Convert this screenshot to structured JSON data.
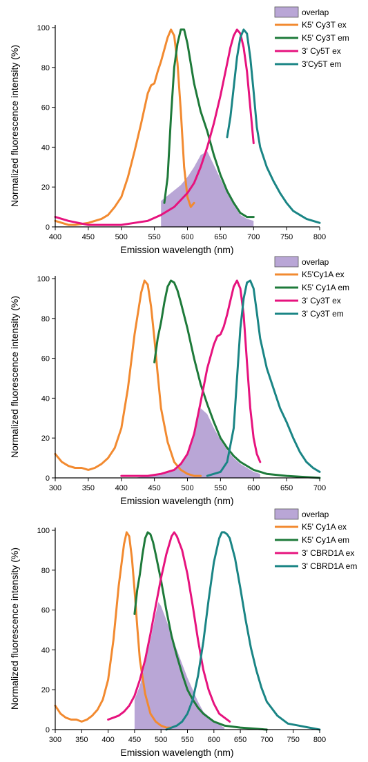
{
  "chart_data": [
    {
      "type": "line",
      "xlabel": "Emission wavelength (nm)",
      "ylabel": "Normalized fluorescence intensity (%)",
      "xlim": [
        400,
        800
      ],
      "ylim": [
        0,
        100
      ],
      "xticks": [
        400,
        450,
        500,
        550,
        600,
        650,
        700,
        750,
        800
      ],
      "yticks": [
        0,
        20,
        40,
        60,
        80,
        100
      ],
      "legend_position": "top-right",
      "overlap": {
        "name": "overlap",
        "color": "#b9a6d6",
        "x": [
          560,
          575,
          590,
          600,
          610,
          620,
          630,
          640,
          650,
          660,
          670,
          680,
          690,
          700
        ],
        "y": [
          13,
          17,
          21,
          25,
          30,
          36,
          38,
          31,
          24,
          17,
          11,
          6,
          4,
          3
        ]
      },
      "series": [
        {
          "name": "K5' Cy3T ex",
          "color": "#f28a30",
          "x": [
            400,
            410,
            420,
            430,
            450,
            470,
            480,
            490,
            500,
            510,
            520,
            530,
            540,
            545,
            550,
            555,
            560,
            565,
            570,
            575,
            580,
            585,
            590,
            595,
            600,
            605,
            610
          ],
          "y": [
            3,
            2,
            1,
            1,
            2,
            4,
            6,
            10,
            15,
            25,
            38,
            52,
            67,
            71,
            72,
            78,
            83,
            89,
            95,
            99,
            96,
            82,
            58,
            30,
            15,
            10,
            12
          ]
        },
        {
          "name": "K5' Cy3T em",
          "color": "#1e7a3a",
          "x": [
            565,
            570,
            575,
            580,
            585,
            590,
            595,
            600,
            605,
            610,
            620,
            630,
            640,
            650,
            660,
            670,
            680,
            690,
            700
          ],
          "y": [
            12,
            25,
            55,
            80,
            92,
            99,
            99,
            92,
            82,
            72,
            58,
            48,
            36,
            26,
            18,
            12,
            7,
            5,
            5
          ]
        },
        {
          "name": "3' Cy5T ex",
          "color": "#e6137e",
          "x": [
            400,
            420,
            450,
            480,
            500,
            520,
            540,
            560,
            580,
            600,
            610,
            620,
            630,
            640,
            650,
            660,
            665,
            670,
            675,
            680,
            685,
            690,
            695,
            700
          ],
          "y": [
            5,
            3,
            1,
            1,
            1,
            2,
            3,
            6,
            10,
            17,
            22,
            30,
            40,
            52,
            66,
            82,
            90,
            96,
            99,
            97,
            90,
            78,
            60,
            42
          ]
        },
        {
          "name": "3'Cy5T em",
          "color": "#1a8585",
          "x": [
            660,
            665,
            670,
            675,
            680,
            685,
            690,
            695,
            700,
            705,
            710,
            720,
            730,
            740,
            750,
            760,
            770,
            780,
            790,
            800
          ],
          "y": [
            45,
            55,
            70,
            85,
            95,
            99,
            97,
            85,
            68,
            50,
            40,
            30,
            23,
            17,
            12,
            8,
            6,
            4,
            3,
            2
          ]
        }
      ]
    },
    {
      "type": "line",
      "xlabel": "Emission wavelength (nm)",
      "ylabel": "Normalized fluorescence intensity (%)",
      "xlim": [
        300,
        700
      ],
      "ylim": [
        0,
        100
      ],
      "xticks": [
        300,
        350,
        400,
        450,
        500,
        550,
        600,
        650,
        700
      ],
      "yticks": [
        0,
        20,
        40,
        60,
        80,
        100
      ],
      "legend_position": "top-right",
      "overlap": {
        "name": "overlap",
        "color": "#b9a6d6",
        "x": [
          420,
          440,
          460,
          480,
          490,
          500,
          510,
          520,
          530,
          540,
          550,
          560,
          570,
          580,
          590,
          600,
          610
        ],
        "y": [
          0,
          1,
          2,
          4,
          7,
          12,
          22,
          35,
          32,
          25,
          19,
          14,
          10,
          7,
          5,
          3,
          2
        ]
      },
      "series": [
        {
          "name": "K5'Cy1A ex",
          "color": "#f28a30",
          "x": [
            300,
            310,
            320,
            330,
            340,
            350,
            360,
            370,
            380,
            390,
            400,
            410,
            420,
            430,
            435,
            440,
            445,
            450,
            455,
            460,
            470,
            480,
            490,
            500,
            510,
            520
          ],
          "y": [
            12,
            8,
            6,
            5,
            5,
            4,
            5,
            7,
            10,
            15,
            25,
            45,
            72,
            93,
            99,
            97,
            86,
            70,
            52,
            35,
            18,
            8,
            4,
            2,
            1,
            1
          ]
        },
        {
          "name": "K5' Cy1A em",
          "color": "#1e7a3a",
          "x": [
            450,
            455,
            460,
            465,
            470,
            475,
            480,
            485,
            490,
            500,
            510,
            520,
            530,
            540,
            550,
            560,
            570,
            580,
            600,
            620,
            650,
            700
          ],
          "y": [
            58,
            70,
            78,
            88,
            96,
            99,
            98,
            94,
            88,
            75,
            60,
            47,
            37,
            28,
            20,
            15,
            11,
            8,
            4,
            2,
            1,
            0
          ]
        },
        {
          "name": "3' Cy3T ex",
          "color": "#e6137e",
          "x": [
            400,
            420,
            440,
            460,
            480,
            490,
            500,
            510,
            520,
            530,
            540,
            545,
            550,
            555,
            560,
            565,
            570,
            575,
            580,
            585,
            590,
            595,
            600,
            605,
            610
          ],
          "y": [
            1,
            1,
            1,
            2,
            4,
            7,
            12,
            22,
            38,
            55,
            67,
            71,
            72,
            76,
            82,
            89,
            96,
            99,
            95,
            82,
            58,
            35,
            20,
            12,
            8
          ]
        },
        {
          "name": "3' Cy3T em",
          "color": "#1a8585",
          "x": [
            530,
            540,
            550,
            560,
            570,
            575,
            580,
            585,
            590,
            595,
            600,
            605,
            610,
            620,
            630,
            640,
            650,
            660,
            670,
            680,
            690,
            700
          ],
          "y": [
            1,
            2,
            3,
            8,
            25,
            50,
            75,
            90,
            98,
            99,
            95,
            83,
            70,
            55,
            45,
            35,
            28,
            20,
            13,
            8,
            5,
            3
          ]
        }
      ]
    },
    {
      "type": "line",
      "xlabel": "Emission wavelength (nm)",
      "ylabel": "Normalized fluorescence intensity (%)",
      "xlim": [
        300,
        800
      ],
      "ylim": [
        0,
        100
      ],
      "xticks": [
        300,
        350,
        400,
        450,
        500,
        550,
        600,
        650,
        700,
        750,
        800
      ],
      "yticks": [
        0,
        20,
        40,
        60,
        80,
        100
      ],
      "legend_position": "top-right",
      "overlap": {
        "name": "overlap",
        "color": "#b9a6d6",
        "x": [
          450,
          460,
          470,
          480,
          490,
          495,
          500,
          510,
          520,
          530,
          540,
          550,
          560,
          570,
          580,
          600,
          620
        ],
        "y": [
          15,
          22,
          33,
          45,
          58,
          64,
          62,
          55,
          47,
          40,
          33,
          26,
          20,
          14,
          9,
          4,
          1
        ]
      },
      "series": [
        {
          "name": "K5' Cy1A ex",
          "color": "#f28a30",
          "x": [
            300,
            310,
            320,
            330,
            340,
            350,
            360,
            370,
            380,
            390,
            400,
            410,
            420,
            430,
            435,
            440,
            445,
            450,
            455,
            460,
            470,
            480,
            490,
            500,
            510,
            520
          ],
          "y": [
            12,
            8,
            6,
            5,
            5,
            4,
            5,
            7,
            10,
            15,
            25,
            45,
            72,
            93,
            99,
            97,
            86,
            70,
            52,
            35,
            18,
            8,
            4,
            2,
            1,
            1
          ]
        },
        {
          "name": "K5' Cy1A em",
          "color": "#1e7a3a",
          "x": [
            450,
            455,
            460,
            465,
            470,
            475,
            480,
            485,
            490,
            500,
            510,
            520,
            530,
            540,
            550,
            560,
            570,
            580,
            600,
            620,
            650,
            700
          ],
          "y": [
            58,
            70,
            78,
            88,
            96,
            99,
            98,
            94,
            88,
            75,
            60,
            47,
            37,
            28,
            20,
            15,
            11,
            8,
            4,
            2,
            1,
            0
          ]
        },
        {
          "name": "3' CBRD1A ex",
          "color": "#e6137e",
          "x": [
            400,
            410,
            420,
            430,
            440,
            450,
            460,
            470,
            480,
            490,
            500,
            510,
            520,
            525,
            530,
            540,
            550,
            560,
            570,
            580,
            590,
            600,
            610,
            620,
            630
          ],
          "y": [
            5,
            6,
            7,
            9,
            12,
            17,
            25,
            35,
            48,
            62,
            76,
            88,
            97,
            99,
            97,
            90,
            78,
            62,
            45,
            30,
            20,
            13,
            8,
            6,
            4
          ]
        },
        {
          "name": "3' CBRD1A em",
          "color": "#1a8585",
          "x": [
            510,
            520,
            530,
            540,
            550,
            560,
            570,
            580,
            590,
            600,
            610,
            615,
            620,
            625,
            630,
            640,
            650,
            660,
            670,
            680,
            690,
            700,
            720,
            740,
            760,
            780,
            800
          ],
          "y": [
            0,
            1,
            2,
            4,
            8,
            15,
            27,
            44,
            65,
            84,
            96,
            99,
            99,
            98,
            96,
            86,
            71,
            55,
            41,
            30,
            21,
            14,
            7,
            3,
            2,
            1,
            0
          ]
        }
      ]
    }
  ]
}
